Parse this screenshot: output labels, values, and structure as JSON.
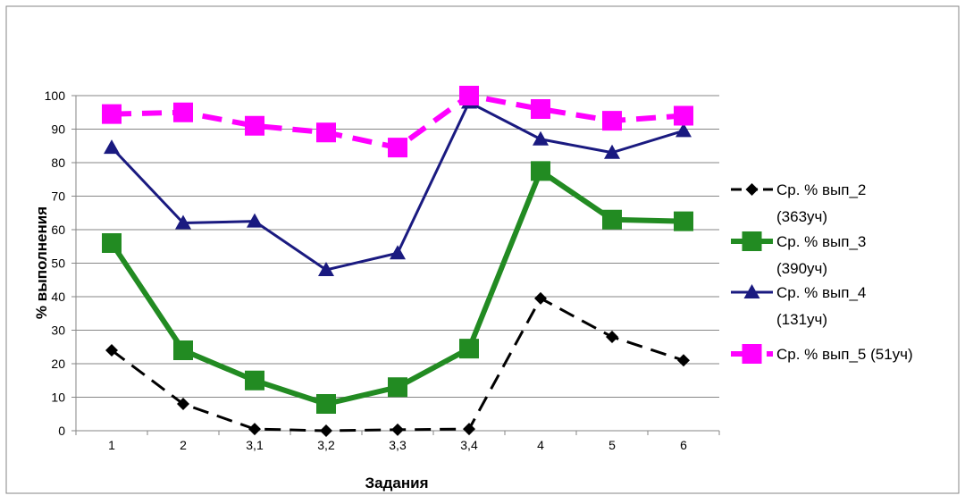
{
  "chart_data": {
    "type": "line",
    "title": "",
    "xlabel": "Задания",
    "ylabel": "% выполнения",
    "categories": [
      "1",
      "2",
      "3,1",
      "3,2",
      "3,3",
      "3,4",
      "4",
      "5",
      "6"
    ],
    "ylim": [
      0,
      100
    ],
    "yticks": [
      "0",
      "10",
      "20",
      "30",
      "40",
      "50",
      "60",
      "70",
      "80",
      "90",
      "100"
    ],
    "grid": "horizontal",
    "legend_position": "right",
    "series": [
      {
        "name": "Ср. % вып_2 (363уч)",
        "legend_lines": [
          "Ср. % вып_2",
          "(363уч)"
        ],
        "values": [
          24,
          8,
          0.5,
          0,
          0.3,
          0.5,
          39.5,
          28,
          21
        ],
        "color": "#000000",
        "line_style": "dashed",
        "marker": "diamond"
      },
      {
        "name": "Ср. % вып_3 (390уч)",
        "legend_lines": [
          "Ср. % вып_3",
          "(390уч)"
        ],
        "values": [
          56,
          24,
          15,
          8,
          13,
          24.5,
          77.5,
          63,
          62.5
        ],
        "color": "#228b22",
        "line_style": "solid",
        "marker": "square"
      },
      {
        "name": "Ср. % вып_4 (131уч)",
        "legend_lines": [
          "Ср. % вып_4",
          "(131уч)"
        ],
        "values": [
          84.5,
          62,
          62.5,
          48,
          53,
          98,
          87,
          83,
          89.5
        ],
        "color": "#1a1a80",
        "line_style": "solid",
        "marker": "triangle"
      },
      {
        "name": "Ср. % вып_5 (51уч)",
        "legend_lines": [
          "Ср. % вып_5 (51уч)"
        ],
        "values": [
          94.5,
          95,
          91,
          89,
          84.5,
          100,
          96,
          92.5,
          94
        ],
        "color": "#ff00ff",
        "line_style": "dashed",
        "marker": "square"
      }
    ]
  }
}
